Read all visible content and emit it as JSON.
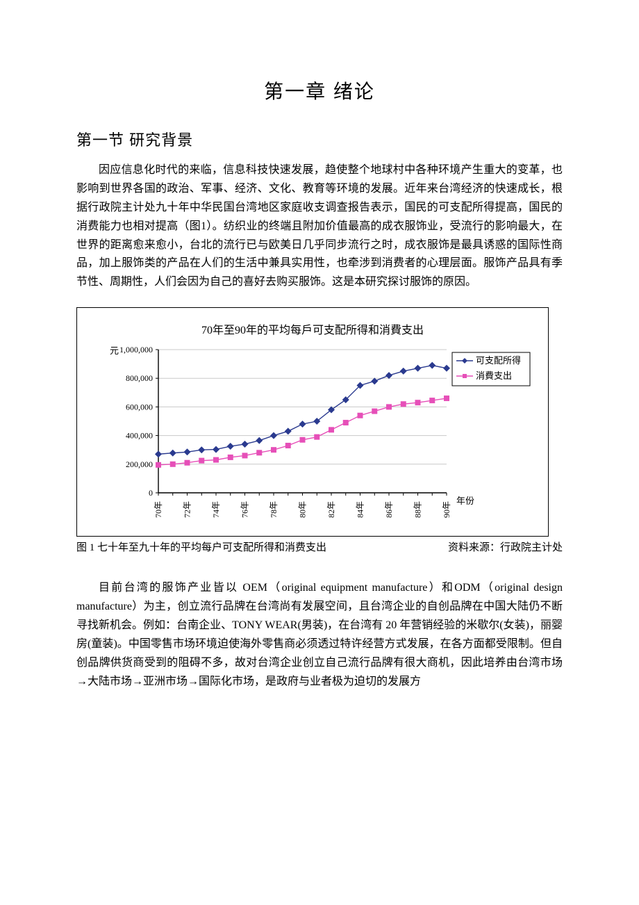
{
  "chapter_title": "第一章 绪论",
  "section_title": "第一节 研究背景",
  "para1": "因应信息化时代的来临，信息科技快速发展，趋使整个地球村中各种环境产生重大的变革，也影响到世界各国的政治、军事、经济、文化、教育等环境的发展。近年来台湾经济的快速成长，根据行政院主计处九十年中华民国台湾地区家庭收支调查报告表示，国民的可支配所得提高，国民的消费能力也相对提高（图1）。纺织业的终端且附加价值最高的成衣服饰业，受流行的影响最大，在世界的距离愈来愈小，台北的流行已与欧美日几乎同步流行之时，成衣服饰是最具诱惑的国际性商品，加上服饰类的产品在人们的生活中兼具实用性，也牵涉到消费者的心理层面。服饰产品具有季节性、周期性，人们会因为自己的喜好去购买服饰。这是本研究探讨服饰的原因。",
  "para2_pre": "目前台湾的服饰产业皆以 OEM（",
  "para2_oem": "original equipment manufacture",
  "para2_mid1": "）和ODM（",
  "para2_odm": "original design manufacture",
  "para2_mid2": "）为主，创立流行品牌在台湾尚有发展空间，且台湾企业的自创品牌在中国大陆仍不断寻找新机会。例如：台南企业、TONY WEAR(男装)，在台湾有 20 年营销经验的米歇尔(女装)，丽婴房(童装)。中国零售市场环境迫使海外零售商必须透过特许经营方式发展，在各方面都受限制。但自创品牌供货商受到的阻碍不多，故对台湾企业创立自己流行品牌有很大商机，因此培养由台湾市场→大陆市场→亚洲市场→国际化市场，是政府与业者极为迫切的发展方",
  "chart": {
    "type": "line",
    "title": "70年至90年的平均每戶可支配所得和消費支出",
    "y_unit_label": "元",
    "x_axis_label": "年份",
    "x_labels": [
      "70年",
      "72年",
      "74年",
      "76年",
      "78年",
      "80年",
      "82年",
      "84年",
      "86年",
      "88年",
      "90年"
    ],
    "y_ticks": [
      0,
      200000,
      400000,
      600000,
      800000,
      1000000
    ],
    "y_tick_labels": [
      "0",
      "200,000",
      "400,000",
      "600,000",
      "800,000",
      "1,000,000"
    ],
    "ylim": [
      0,
      1000000
    ],
    "series": [
      {
        "name": "可支配所得",
        "color": "#2a3a8f",
        "marker": "diamond",
        "values": [
          270000,
          278000,
          285000,
          300000,
          303000,
          325000,
          340000,
          365000,
          400000,
          430000,
          480000,
          500000,
          580000,
          650000,
          750000,
          780000,
          820000,
          850000,
          870000,
          890000,
          870000
        ]
      },
      {
        "name": "消費支出",
        "color": "#e64fb8",
        "marker": "square",
        "values": [
          195000,
          200000,
          210000,
          225000,
          230000,
          248000,
          260000,
          280000,
          300000,
          330000,
          370000,
          390000,
          440000,
          490000,
          540000,
          570000,
          600000,
          620000,
          630000,
          645000,
          660000
        ]
      }
    ],
    "legend_border": "#000000",
    "legend_bg": "#ffffff",
    "axis_color": "#000000",
    "grid_color": "#c9c9c9",
    "background_color": "#ffffff",
    "label_fontsize": 13,
    "tick_fontsize": 12,
    "line_width": 1.4,
    "marker_size": 5
  },
  "caption_left": "图 1 七十年至九十年的平均每户可支配所得和消费支出",
  "caption_right": "资料来源：行政院主计处"
}
